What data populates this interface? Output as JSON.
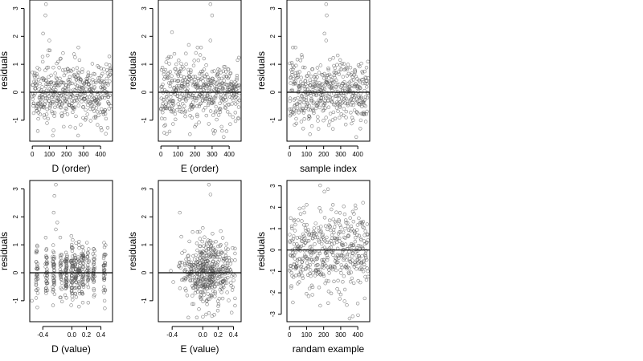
{
  "chart_data": [
    {
      "type": "scatter",
      "xlabel": "D (order)",
      "ylabel": "residuals",
      "xticks": [
        0,
        100,
        200,
        300,
        400
      ],
      "yticks": [
        -1,
        0,
        1,
        2,
        3
      ],
      "xlim": [
        -15,
        470
      ],
      "ylim": [
        -1.75,
        3.3
      ],
      "hline": 0,
      "gen": {
        "n": 460,
        "xmode": "index",
        "xmin": 0,
        "xmax": 460,
        "sd": 0.55,
        "seed": 11
      },
      "outliers": [
        [
          80,
          3.15
        ],
        [
          77,
          2.75
        ],
        [
          63,
          2.1
        ],
        [
          100,
          1.85
        ],
        [
          95,
          1.5
        ],
        [
          180,
          1.4
        ],
        [
          270,
          1.6
        ],
        [
          120,
          -1.55
        ]
      ]
    },
    {
      "type": "scatter",
      "xlabel": "E (order)",
      "ylabel": "residuals",
      "xticks": [
        0,
        100,
        200,
        300,
        400
      ],
      "yticks": [
        -1,
        0,
        1,
        2,
        3
      ],
      "xlim": [
        -15,
        470
      ],
      "ylim": [
        -1.75,
        3.3
      ],
      "hline": 0,
      "gen": {
        "n": 460,
        "xmode": "index",
        "xmin": 0,
        "xmax": 460,
        "sd": 0.55,
        "seed": 23
      },
      "outliers": [
        [
          290,
          3.15
        ],
        [
          300,
          2.75
        ],
        [
          65,
          2.15
        ],
        [
          290,
          1.85
        ],
        [
          215,
          1.6
        ],
        [
          235,
          1.6
        ],
        [
          170,
          -1.5
        ],
        [
          20,
          -1.45
        ]
      ]
    },
    {
      "type": "scatter",
      "xlabel": "sample index",
      "ylabel": "residuals",
      "xticks": [
        0,
        100,
        200,
        300,
        400
      ],
      "yticks": [
        -1,
        0,
        1,
        2,
        3
      ],
      "xlim": [
        -15,
        470
      ],
      "ylim": [
        -1.75,
        3.3
      ],
      "hline": 0,
      "gen": {
        "n": 460,
        "xmode": "index",
        "xmin": 0,
        "xmax": 460,
        "sd": 0.55,
        "seed": 37
      },
      "outliers": [
        [
          215,
          3.15
        ],
        [
          218,
          2.75
        ],
        [
          205,
          2.1
        ],
        [
          215,
          1.85
        ],
        [
          20,
          1.6
        ],
        [
          35,
          1.6
        ],
        [
          120,
          -1.5
        ],
        [
          415,
          -1.3
        ]
      ]
    },
    {
      "type": "scatter",
      "xlabel": "D (value)",
      "ylabel": "residuals",
      "xticks": [
        -0.4,
        0.0,
        0.2,
        0.4
      ],
      "xticklabels": [
        "-0.4",
        "0.0",
        "0.2",
        "0.4"
      ],
      "yticks": [
        -1,
        0,
        1,
        2,
        3
      ],
      "xlim": [
        -0.58,
        0.56
      ],
      "ylim": [
        -1.75,
        3.3
      ],
      "hline": 0,
      "gen": {
        "n": 460,
        "xmode": "bands",
        "xmin": -0.55,
        "xmax": 0.5,
        "bands": [
          -0.48,
          -0.35,
          -0.25,
          -0.15,
          -0.08,
          0.0,
          0.05,
          0.1,
          0.15,
          0.22,
          0.3,
          0.45
        ],
        "sd": 0.5,
        "seed": 51
      },
      "outliers": [
        [
          -0.22,
          3.15
        ],
        [
          -0.24,
          2.75
        ],
        [
          -0.25,
          2.15
        ],
        [
          -0.2,
          1.8
        ],
        [
          -0.22,
          1.55
        ],
        [
          0.45,
          -1.0
        ],
        [
          -0.55,
          -1.0
        ]
      ]
    },
    {
      "type": "scatter",
      "xlabel": "E (value)",
      "ylabel": "residuals",
      "xticks": [
        -0.4,
        0.0,
        0.2,
        0.4
      ],
      "xticklabels": [
        "-0.4",
        "0.0",
        "0.2",
        "0.4"
      ],
      "yticks": [
        -1,
        0,
        1,
        2,
        3
      ],
      "xlim": [
        -0.58,
        0.5
      ],
      "ylim": [
        -1.75,
        3.3
      ],
      "hline": 0,
      "gen": {
        "n": 460,
        "xmode": "normal",
        "xcenter": 0.05,
        "xsd": 0.16,
        "xmin": -0.5,
        "xmax": 0.42,
        "sd": 0.55,
        "seed": 67
      },
      "outliers": [
        [
          0.08,
          3.15
        ],
        [
          0.1,
          2.8
        ],
        [
          -0.3,
          2.15
        ],
        [
          0.0,
          1.6
        ],
        [
          -0.05,
          -1.3
        ],
        [
          0.12,
          -1.55
        ],
        [
          0.15,
          -1.5
        ]
      ]
    },
    {
      "type": "scatter",
      "xlabel": "randam example",
      "ylabel": "residuals",
      "xticks": [
        0,
        100,
        200,
        300,
        400
      ],
      "yticks": [
        -3,
        -2,
        -1,
        0,
        1,
        2,
        3
      ],
      "xlim": [
        -15,
        470
      ],
      "ylim": [
        -3.35,
        3.25
      ],
      "hline": 0,
      "gen": {
        "n": 460,
        "xmode": "index",
        "xmin": 0,
        "xmax": 460,
        "sd": 1.0,
        "seed": 89
      },
      "outliers": [
        [
          180,
          -2.6
        ],
        [
          400,
          -2.5
        ],
        [
          370,
          -3.1
        ],
        [
          20,
          -2.45
        ]
      ]
    }
  ]
}
